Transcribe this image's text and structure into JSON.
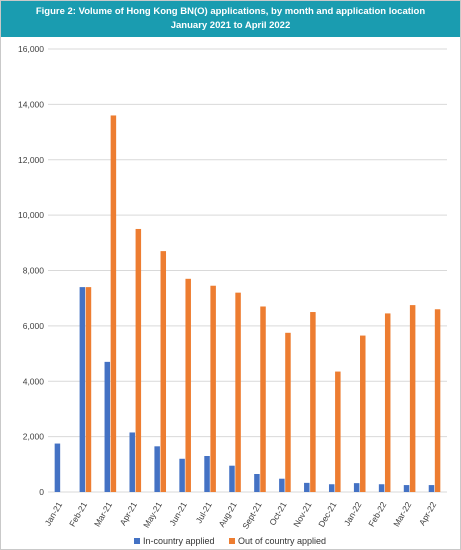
{
  "header": {
    "title_line1": "Figure 2: Volume of Hong Kong BN(O) applications, by month and application location",
    "title_line2": "January 2021 to April 2022"
  },
  "colors": {
    "header_bg": "#1a9cb0",
    "series_in_country": "#4472c4",
    "series_out_country": "#ed7d31",
    "grid": "#d9d9d9"
  },
  "chart_data": {
    "type": "bar",
    "title": "Figure 2: Volume of Hong Kong BN(O) applications, by month and application location",
    "subtitle": "January 2021 to April 2022",
    "xlabel": "",
    "ylabel": "",
    "ylim": [
      0,
      16000
    ],
    "yticks": [
      "0",
      "2,000",
      "4,000",
      "6,000",
      "8,000",
      "10,000",
      "12,000",
      "14,000",
      "16,000"
    ],
    "grid": true,
    "legend_position": "bottom",
    "categories": [
      "Jan-21",
      "Feb-21",
      "Mar-21",
      "Apr-21",
      "May-21",
      "Jun-21",
      "Jul-21",
      "Aug-21",
      "Sept-21",
      "Oct-21",
      "Nov-21",
      "Dec-21",
      "Jan-22",
      "Feb-22",
      "Mar-22",
      "Apr-22"
    ],
    "series": [
      {
        "name": "In-country applied",
        "color": "#4472c4",
        "values": [
          1750,
          7400,
          4700,
          2150,
          1650,
          1200,
          1300,
          950,
          650,
          480,
          330,
          280,
          320,
          280,
          250,
          250
        ]
      },
      {
        "name": "Out of country applied",
        "color": "#ed7d31",
        "values": [
          0,
          7400,
          13600,
          9500,
          8700,
          7700,
          7450,
          7200,
          6700,
          5750,
          6500,
          4350,
          5650,
          6450,
          6750,
          6600
        ]
      }
    ]
  }
}
